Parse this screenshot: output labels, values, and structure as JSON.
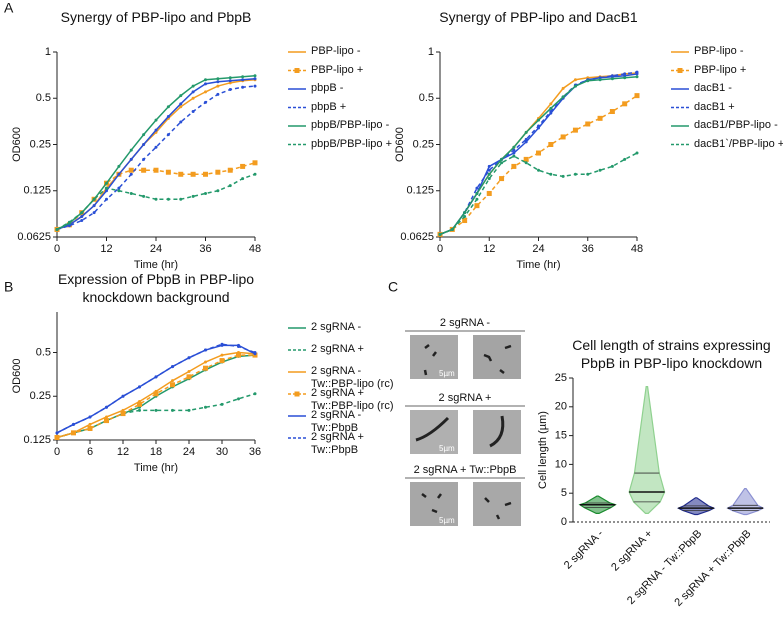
{
  "panels": [
    "A",
    "B",
    "C"
  ],
  "micrographs": [
    {
      "label": "2 sgRNA -",
      "scale": "5µm"
    },
    {
      "label": "2 sgRNA +",
      "scale": "5µm"
    },
    {
      "label": "2 sgRNA + Tw::PbpB",
      "scale": "5µm"
    }
  ],
  "chart_data": [
    {
      "type": "line",
      "title": "Synergy of PBP-lipo and PbpB",
      "xlabel": "Time (hr)",
      "ylabel": "OD600",
      "log_scale_y": true,
      "xlim": [
        0,
        48
      ],
      "xticks": [
        0,
        12,
        24,
        36,
        48
      ],
      "ylim": [
        0.0625,
        1
      ],
      "yticks": [
        0.0625,
        0.125,
        0.25,
        0.5,
        1
      ],
      "x": [
        0,
        3,
        6,
        9,
        12,
        15,
        18,
        21,
        24,
        27,
        30,
        33,
        36,
        39,
        42,
        45,
        48
      ],
      "series": [
        {
          "name": "PBP-lipo -",
          "color": "#f39c1f",
          "style": "solid",
          "values": [
            0.07,
            0.075,
            0.085,
            0.1,
            0.13,
            0.16,
            0.2,
            0.25,
            0.3,
            0.37,
            0.44,
            0.5,
            0.55,
            0.6,
            0.63,
            0.65,
            0.66
          ]
        },
        {
          "name": "PBP-lipo +",
          "color": "#f39c1f",
          "style": "dashed",
          "marker": "square",
          "values": [
            0.07,
            0.075,
            0.09,
            0.11,
            0.14,
            0.16,
            0.17,
            0.17,
            0.17,
            0.165,
            0.16,
            0.16,
            0.16,
            0.165,
            0.17,
            0.18,
            0.19
          ]
        },
        {
          "name": "pbpB -",
          "color": "#2a4fd6",
          "style": "solid",
          "values": [
            0.07,
            0.075,
            0.085,
            0.1,
            0.125,
            0.16,
            0.2,
            0.25,
            0.31,
            0.38,
            0.46,
            0.55,
            0.62,
            0.64,
            0.65,
            0.66,
            0.67
          ]
        },
        {
          "name": "pbpB +",
          "color": "#2a4fd6",
          "style": "dashed",
          "values": [
            0.07,
            0.074,
            0.08,
            0.09,
            0.11,
            0.13,
            0.16,
            0.2,
            0.24,
            0.29,
            0.35,
            0.41,
            0.47,
            0.53,
            0.57,
            0.59,
            0.6
          ]
        },
        {
          "name": "pbpB/PBP-lipo -",
          "color": "#23996b",
          "style": "solid",
          "values": [
            0.07,
            0.077,
            0.09,
            0.11,
            0.14,
            0.18,
            0.23,
            0.29,
            0.36,
            0.44,
            0.52,
            0.6,
            0.66,
            0.67,
            0.68,
            0.69,
            0.7
          ]
        },
        {
          "name": "pbpB/PBP-lipo +",
          "color": "#23996b",
          "style": "dashed",
          "values": [
            0.07,
            0.078,
            0.09,
            0.11,
            0.13,
            0.125,
            0.12,
            0.115,
            0.11,
            0.11,
            0.11,
            0.115,
            0.12,
            0.125,
            0.135,
            0.15,
            0.16
          ]
        }
      ]
    },
    {
      "type": "line",
      "title": "Synergy of PBP-lipo and DacB1",
      "xlabel": "Time (hr)",
      "ylabel": "OD600",
      "log_scale_y": true,
      "xlim": [
        0,
        48
      ],
      "xticks": [
        0,
        12,
        24,
        36,
        48
      ],
      "ylim": [
        0.0625,
        1
      ],
      "yticks": [
        0.0625,
        0.125,
        0.25,
        0.5,
        1
      ],
      "x": [
        0,
        3,
        6,
        9,
        12,
        15,
        18,
        21,
        24,
        27,
        30,
        33,
        36,
        39,
        42,
        45,
        48
      ],
      "series": [
        {
          "name": "PBP-lipo -",
          "color": "#f39c1f",
          "style": "solid",
          "values": [
            0.065,
            0.07,
            0.09,
            0.12,
            0.16,
            0.2,
            0.24,
            0.3,
            0.37,
            0.46,
            0.58,
            0.66,
            0.68,
            0.69,
            0.7,
            0.72,
            0.73
          ]
        },
        {
          "name": "PBP-lipo +",
          "color": "#f39c1f",
          "style": "dashed",
          "marker": "square",
          "values": [
            0.065,
            0.07,
            0.08,
            0.1,
            0.12,
            0.15,
            0.18,
            0.2,
            0.22,
            0.25,
            0.28,
            0.31,
            0.34,
            0.37,
            0.41,
            0.46,
            0.52
          ]
        },
        {
          "name": "dacB1 -",
          "color": "#2a4fd6",
          "style": "solid",
          "values": [
            0.065,
            0.07,
            0.09,
            0.12,
            0.18,
            0.2,
            0.22,
            0.26,
            0.32,
            0.4,
            0.5,
            0.6,
            0.66,
            0.68,
            0.69,
            0.7,
            0.72
          ]
        },
        {
          "name": "dacB1 +",
          "color": "#2a4fd6",
          "style": "dashed",
          "values": [
            0.065,
            0.07,
            0.09,
            0.13,
            0.17,
            0.2,
            0.23,
            0.27,
            0.33,
            0.41,
            0.51,
            0.61,
            0.66,
            0.68,
            0.7,
            0.72,
            0.74
          ]
        },
        {
          "name": "dacB1/PBP-lipo -",
          "color": "#23996b",
          "style": "solid",
          "values": [
            0.065,
            0.07,
            0.09,
            0.12,
            0.16,
            0.2,
            0.24,
            0.3,
            0.36,
            0.43,
            0.51,
            0.6,
            0.65,
            0.66,
            0.67,
            0.68,
            0.69
          ]
        },
        {
          "name": "dacB1`/PBP-lipo +",
          "color": "#23996b",
          "style": "dashed",
          "values": [
            0.065,
            0.07,
            0.085,
            0.11,
            0.15,
            0.19,
            0.21,
            0.19,
            0.17,
            0.16,
            0.155,
            0.16,
            0.16,
            0.17,
            0.18,
            0.2,
            0.22
          ]
        }
      ]
    },
    {
      "type": "line",
      "title": "Expression of PbpB in PBP-lipo knockdown background",
      "xlabel": "Time (hr)",
      "ylabel": "OD600",
      "log_scale_y": true,
      "xlim": [
        0,
        36
      ],
      "xticks": [
        0,
        6,
        12,
        18,
        24,
        30,
        36
      ],
      "ylim": [
        0.125,
        0.95
      ],
      "yticks": [
        0.125,
        0.25,
        0.5
      ],
      "x": [
        0,
        3,
        6,
        9,
        12,
        15,
        18,
        21,
        24,
        27,
        30,
        33,
        36
      ],
      "series": [
        {
          "name": "2 sgRNA -",
          "color": "#23996b",
          "style": "solid",
          "values": [
            0.13,
            0.14,
            0.15,
            0.17,
            0.19,
            0.21,
            0.25,
            0.29,
            0.33,
            0.38,
            0.43,
            0.47,
            0.48
          ]
        },
        {
          "name": "2 sgRNA +",
          "color": "#23996b",
          "style": "dashed",
          "values": [
            0.13,
            0.14,
            0.15,
            0.17,
            0.19,
            0.2,
            0.2,
            0.2,
            0.2,
            0.21,
            0.22,
            0.24,
            0.26
          ]
        },
        {
          "name": "2 sgRNA - Tw::PBP-lipo (rc)",
          "color": "#f39c1f",
          "style": "solid",
          "values": [
            0.13,
            0.14,
            0.16,
            0.18,
            0.2,
            0.23,
            0.27,
            0.32,
            0.37,
            0.43,
            0.48,
            0.5,
            0.49
          ]
        },
        {
          "name": "2 sgRNA + Tw::PBP-lipo (rc)",
          "color": "#f39c1f",
          "style": "dashed",
          "marker": "square",
          "values": [
            0.13,
            0.14,
            0.15,
            0.17,
            0.19,
            0.22,
            0.26,
            0.3,
            0.34,
            0.39,
            0.44,
            0.48,
            0.48
          ]
        },
        {
          "name": "2 sgRNA - Tw::PbpB",
          "color": "#2a4fd6",
          "style": "solid",
          "values": [
            0.14,
            0.16,
            0.18,
            0.21,
            0.25,
            0.29,
            0.34,
            0.4,
            0.46,
            0.52,
            0.56,
            0.56,
            0.49
          ]
        },
        {
          "name": "2 sgRNA + Tw::PbpB",
          "color": "#2a4fd6",
          "style": "dashed",
          "values": [
            0.14,
            0.16,
            0.18,
            0.21,
            0.25,
            0.29,
            0.34,
            0.4,
            0.46,
            0.52,
            0.57,
            0.55,
            0.5
          ]
        }
      ]
    },
    {
      "type": "violin",
      "title": "Cell length of strains expressing PbpB in PBP-lipo knockdown",
      "ylabel": "Cell length (µm)",
      "ylim": [
        0,
        25
      ],
      "yticks": [
        0,
        5,
        10,
        15,
        20,
        25
      ],
      "categories": [
        "2 sgRNA -",
        "2 sgRNA +",
        "2 sgRNA - Tw::PbpB",
        "2 sgRNA + Tw::PbpB"
      ],
      "colors": [
        "#1a8c2e",
        "#8fd18f",
        "#1f2a8c",
        "#8a8fd1"
      ],
      "min": [
        1.5,
        1.5,
        1.3,
        1.3
      ],
      "q1": [
        2.5,
        3.5,
        2.0,
        2.0
      ],
      "median": [
        3.0,
        5.2,
        2.4,
        2.4
      ],
      "q3": [
        3.3,
        8.5,
        2.8,
        2.9
      ],
      "max": [
        4.5,
        23.5,
        4.2,
        5.8
      ]
    }
  ]
}
